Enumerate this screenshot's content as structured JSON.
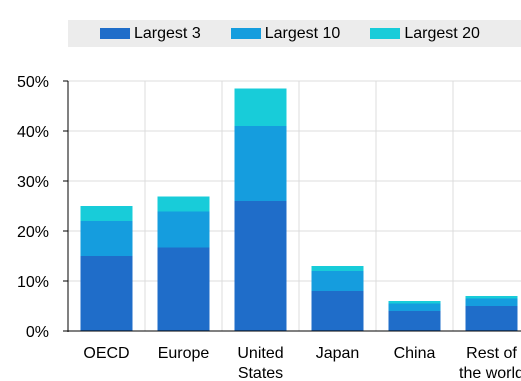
{
  "chart_data": {
    "type": "bar",
    "stacked": true,
    "categories": [
      [
        "OECD"
      ],
      [
        "Europe"
      ],
      [
        "United",
        "States"
      ],
      [
        "Japan"
      ],
      [
        "China"
      ],
      [
        "Rest of",
        "the world"
      ]
    ],
    "series": [
      {
        "name": "Largest 3",
        "color": "#1f6dc9",
        "values": [
          15,
          16.7,
          26,
          8,
          4,
          5
        ]
      },
      {
        "name": "Largest 10",
        "color": "#159dde",
        "values": [
          7,
          7.2,
          15,
          4,
          1.5,
          1.5
        ]
      },
      {
        "name": "Largest 20",
        "color": "#18ccd9",
        "values": [
          3,
          3.0,
          7.5,
          1,
          0.5,
          0.5
        ]
      }
    ],
    "ylim": [
      0,
      50
    ],
    "yticks": [
      "0%",
      "10%",
      "20%",
      "30%",
      "40%",
      "50%"
    ],
    "grid": true,
    "legend_position": "top"
  }
}
